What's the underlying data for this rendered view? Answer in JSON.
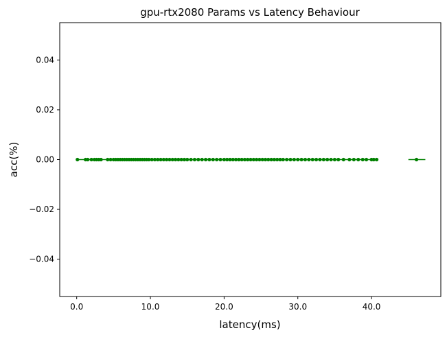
{
  "chart_data": {
    "type": "scatter",
    "title": "gpu-rtx2080 Params vs Latency Behaviour",
    "xlabel": "latency(ms)",
    "ylabel": "acc(%)",
    "xlim": [
      -2.3,
      49.4
    ],
    "ylim": [
      -0.055,
      0.055
    ],
    "x_ticks": [
      0,
      10,
      20,
      30,
      40
    ],
    "x_tick_labels": [
      "0.0",
      "10.0",
      "20.0",
      "30.0",
      "40.0"
    ],
    "y_ticks": [
      0.04,
      0.02,
      0.0,
      -0.02,
      -0.04
    ],
    "y_tick_labels": [
      "0.04",
      "0.02",
      "0.00",
      "−0.02",
      "−0.04"
    ],
    "grid": false,
    "color": "#008000",
    "series": [
      {
        "x": [
          0.1,
          1.2,
          1.5,
          2.0,
          2.4,
          2.7,
          3.0,
          3.3,
          4.2,
          4.6,
          5.0,
          5.3,
          5.6,
          5.9,
          6.2,
          6.5,
          6.8,
          7.1,
          7.4,
          7.7,
          8.0,
          8.3,
          8.6,
          8.9,
          9.2,
          9.5,
          9.8,
          10.2,
          10.6,
          11.0,
          11.4,
          11.8,
          12.2,
          12.6,
          13.0,
          13.4,
          13.8,
          14.2,
          14.6,
          15.0,
          15.5,
          16.0,
          16.5,
          17.0,
          17.5,
          18.0,
          18.5,
          19.0,
          19.5,
          20.0,
          20.4,
          20.8,
          21.2,
          21.6,
          22.0,
          22.4,
          22.8,
          23.2,
          23.6,
          24.0,
          24.4,
          24.8,
          25.2,
          25.6,
          26.0,
          26.4,
          26.8,
          27.2,
          27.6,
          28.0,
          28.5,
          29.0,
          29.5,
          30.0,
          30.5,
          31.0,
          31.5,
          32.0,
          32.5,
          33.0,
          33.5,
          34.0,
          34.5,
          35.0,
          35.5,
          36.2,
          37.0,
          37.6,
          38.2,
          38.8,
          39.3,
          40.0,
          40.3,
          40.7,
          46.1
        ],
        "y": [
          0,
          0,
          0,
          0,
          0,
          0,
          0,
          0,
          0,
          0,
          0,
          0,
          0,
          0,
          0,
          0,
          0,
          0,
          0,
          0,
          0,
          0,
          0,
          0,
          0,
          0,
          0,
          0,
          0,
          0,
          0,
          0,
          0,
          0,
          0,
          0,
          0,
          0,
          0,
          0,
          0,
          0,
          0,
          0,
          0,
          0,
          0,
          0,
          0,
          0,
          0,
          0,
          0,
          0,
          0,
          0,
          0,
          0,
          0,
          0,
          0,
          0,
          0,
          0,
          0,
          0,
          0,
          0,
          0,
          0,
          0,
          0,
          0,
          0,
          0,
          0,
          0,
          0,
          0,
          0,
          0,
          0,
          0,
          0,
          0,
          0,
          0,
          0,
          0,
          0,
          0,
          0,
          0,
          0,
          0
        ]
      }
    ],
    "reference_lines": [
      {
        "x": [
          0.1,
          40.7
        ],
        "y": [
          0,
          0
        ]
      },
      {
        "x": [
          45.0,
          47.3
        ],
        "y": [
          0,
          0
        ]
      }
    ]
  }
}
